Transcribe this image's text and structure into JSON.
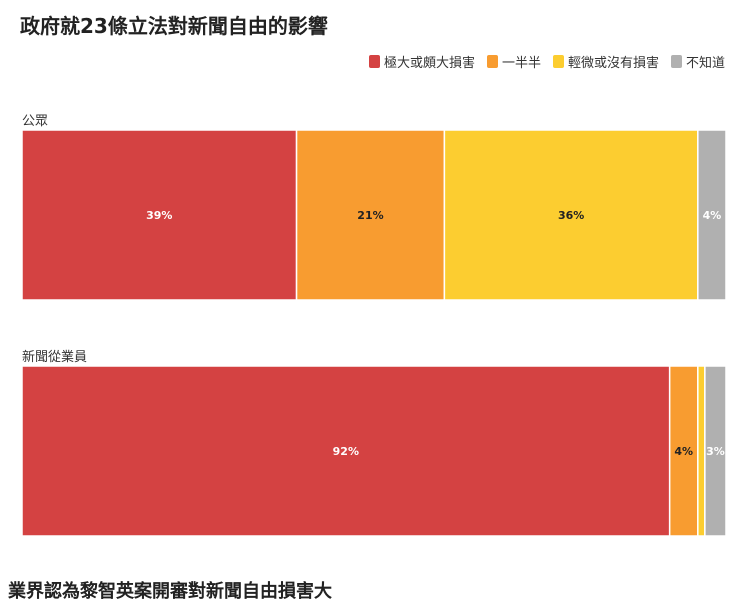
{
  "title": "政府就23條立法對新聞自由的影響",
  "caption": "業界認為黎智英案開審對新聞自由損害大",
  "chart_data": {
    "type": "bar",
    "stacked": true,
    "orientation": "horizontal",
    "normalized": true,
    "title": "政府就23條立法對新聞自由的影響",
    "xlabel": "",
    "ylabel": "",
    "legend_position": "top-right",
    "grid": false,
    "categories": [
      "公眾",
      "新聞從業員"
    ],
    "series": [
      {
        "name": "極大或頗大損害",
        "color": "#d44242",
        "label_color": "#ffffff",
        "values": [
          39,
          92
        ]
      },
      {
        "name": "一半半",
        "color": "#f89c30",
        "label_color": "#222222",
        "values": [
          21,
          4
        ]
      },
      {
        "name": "輕微或沒有損害",
        "color": "#fccd30",
        "label_color": "#222222",
        "values": [
          36,
          1
        ]
      },
      {
        "name": "不知道",
        "color": "#b0b0b0",
        "label_color": "#ffffff",
        "values": [
          4,
          3
        ]
      }
    ],
    "value_suffix": "%"
  }
}
